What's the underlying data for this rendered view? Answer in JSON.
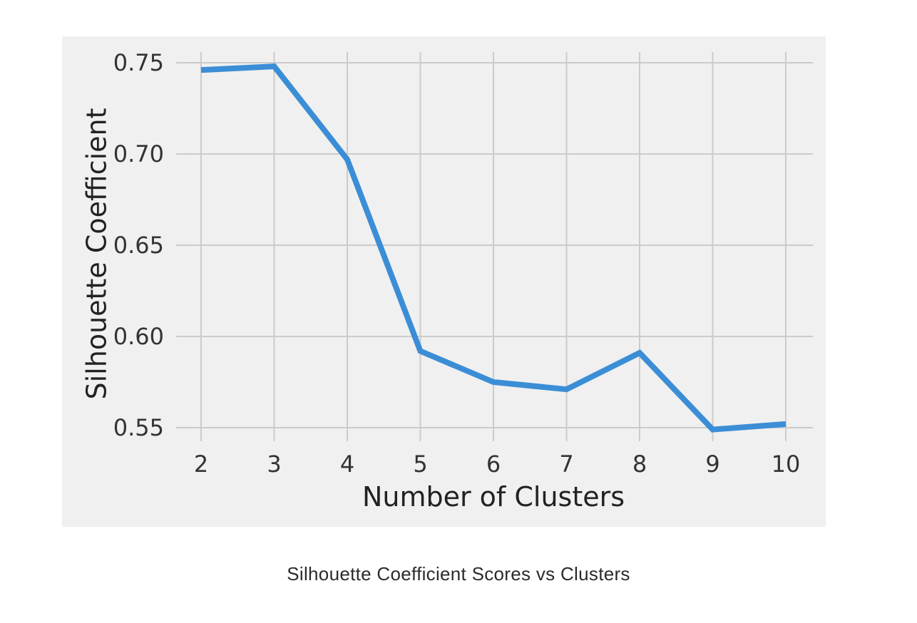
{
  "caption": "Silhouette Coefficient Scores vs Clusters",
  "chart_data": {
    "type": "line",
    "title": "",
    "xlabel": "Number of Clusters",
    "ylabel": "Silhouette Coefficient",
    "x": [
      2,
      3,
      4,
      5,
      6,
      7,
      8,
      9,
      10
    ],
    "series": [
      {
        "values": [
          0.746,
          0.748,
          0.697,
          0.592,
          0.575,
          0.571,
          0.591,
          0.549,
          0.552
        ],
        "color": "#3b8ed6"
      }
    ],
    "xticks": [
      "2",
      "3",
      "4",
      "5",
      "6",
      "7",
      "8",
      "9",
      "10"
    ],
    "yticks": [
      "0.55",
      "0.60",
      "0.65",
      "0.70",
      "0.75"
    ],
    "ytick_values": [
      0.55,
      0.6,
      0.65,
      0.7,
      0.75
    ],
    "xlim": [
      2,
      10
    ],
    "ylim": [
      0.55,
      0.75
    ],
    "grid": true,
    "background": "#f0f0f0"
  }
}
